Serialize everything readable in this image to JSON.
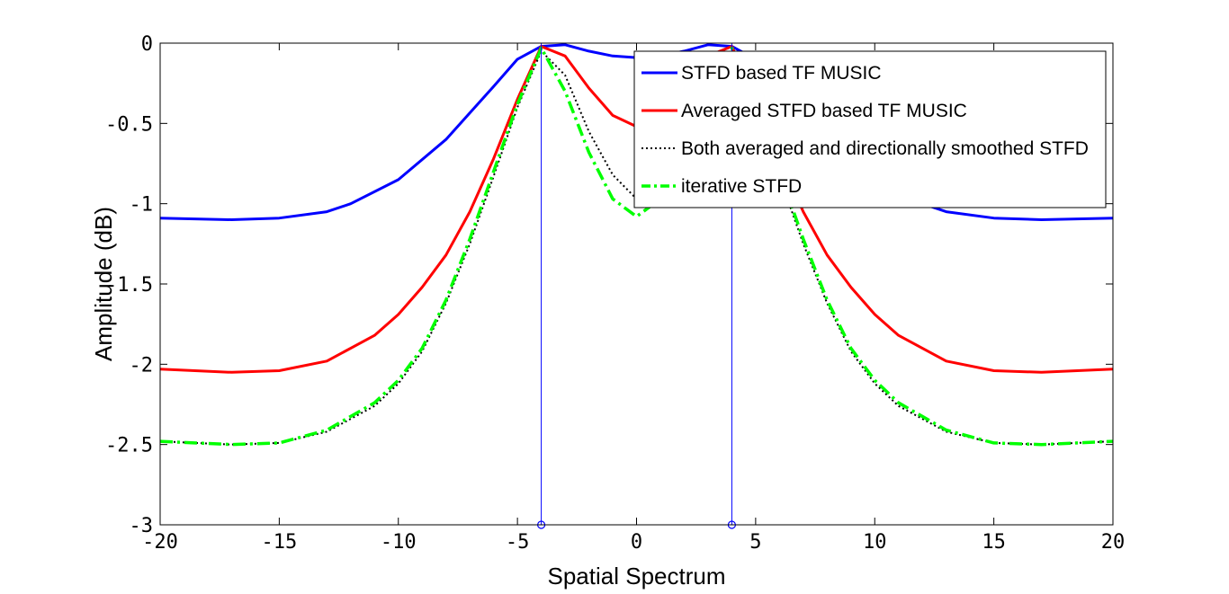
{
  "chart_data": {
    "type": "line",
    "xlabel": "Spatial Spectrum",
    "ylabel": "Amplitude (dB)",
    "xlim": [
      -20,
      20
    ],
    "ylim": [
      -3,
      0
    ],
    "xticks": [
      -20,
      -15,
      -10,
      -5,
      0,
      5,
      10,
      15,
      20
    ],
    "yticks": [
      0,
      -0.5,
      -1,
      -1.5,
      -2,
      -2.5,
      -3
    ],
    "grid": false,
    "legend_position": "top-right",
    "series": [
      {
        "name": "STFD based TF MUSIC",
        "color": "#0000ff",
        "style": "solid",
        "x": [
          -20,
          -17,
          -15,
          -13,
          -12,
          -10,
          -8,
          -6,
          -5,
          -4,
          -3,
          -2,
          -1,
          0,
          1,
          2,
          3,
          4,
          5,
          6,
          8,
          10,
          12,
          13,
          15,
          17,
          20
        ],
        "y": [
          -1.09,
          -1.1,
          -1.09,
          -1.05,
          -1.0,
          -0.85,
          -0.6,
          -0.27,
          -0.1,
          -0.02,
          -0.01,
          -0.05,
          -0.08,
          -0.09,
          -0.08,
          -0.05,
          -0.01,
          -0.02,
          -0.1,
          -0.27,
          -0.6,
          -0.85,
          -1.0,
          -1.05,
          -1.09,
          -1.1,
          -1.09
        ]
      },
      {
        "name": "Averaged STFD based TF MUSIC",
        "color": "#ff0000",
        "style": "solid",
        "x": [
          -20,
          -17,
          -15,
          -13,
          -11,
          -10,
          -9,
          -8,
          -7,
          -6,
          -5,
          -4,
          -3,
          -2,
          -1,
          0,
          1,
          2,
          3,
          4,
          5,
          6,
          7,
          8,
          9,
          10,
          11,
          13,
          15,
          17,
          20
        ],
        "y": [
          -2.03,
          -2.05,
          -2.04,
          -1.98,
          -1.82,
          -1.69,
          -1.52,
          -1.32,
          -1.05,
          -0.72,
          -0.35,
          -0.02,
          -0.08,
          -0.28,
          -0.45,
          -0.52,
          -0.45,
          -0.28,
          -0.08,
          -0.02,
          -0.35,
          -0.72,
          -1.05,
          -1.32,
          -1.52,
          -1.69,
          -1.82,
          -1.98,
          -2.04,
          -2.05,
          -2.03
        ]
      },
      {
        "name": "Both averaged and directionally smoothed STFD",
        "color": "#000000",
        "style": "dotted",
        "x": [
          -20,
          -17,
          -15,
          -13,
          -11,
          -10,
          -9,
          -8,
          -7,
          -6,
          -5,
          -4,
          -3,
          -2,
          -1,
          0,
          1,
          2,
          3,
          4,
          5,
          6,
          7,
          8,
          9,
          10,
          11,
          13,
          15,
          17,
          20
        ],
        "y": [
          -2.48,
          -2.5,
          -2.49,
          -2.42,
          -2.26,
          -2.12,
          -1.92,
          -1.62,
          -1.25,
          -0.83,
          -0.4,
          -0.05,
          -0.2,
          -0.55,
          -0.82,
          -0.97,
          -0.82,
          -0.55,
          -0.2,
          -0.05,
          -0.4,
          -0.83,
          -1.25,
          -1.62,
          -1.92,
          -2.12,
          -2.26,
          -2.42,
          -2.49,
          -2.5,
          -2.48
        ]
      },
      {
        "name": "iterative STFD",
        "color": "#00ff00",
        "style": "dashdot",
        "x": [
          -20,
          -17,
          -15,
          -13,
          -11,
          -10,
          -9,
          -8,
          -7,
          -6,
          -5,
          -4,
          -3,
          -2,
          -1,
          0,
          1,
          2,
          3,
          4,
          5,
          6,
          7,
          8,
          9,
          10,
          11,
          13,
          15,
          17,
          20
        ],
        "y": [
          -2.48,
          -2.5,
          -2.49,
          -2.41,
          -2.24,
          -2.1,
          -1.9,
          -1.6,
          -1.22,
          -0.8,
          -0.38,
          -0.03,
          -0.3,
          -0.68,
          -0.97,
          -1.08,
          -0.97,
          -0.68,
          -0.3,
          -0.03,
          -0.38,
          -0.8,
          -1.22,
          -1.6,
          -1.9,
          -2.1,
          -2.24,
          -2.41,
          -2.49,
          -2.5,
          -2.48
        ]
      }
    ],
    "stems": [
      {
        "x": -4,
        "y_from": -3,
        "y_to": 0,
        "color": "#0000ff"
      },
      {
        "x": 4,
        "y_from": -3,
        "y_to": 0,
        "color": "#0000ff"
      }
    ]
  }
}
